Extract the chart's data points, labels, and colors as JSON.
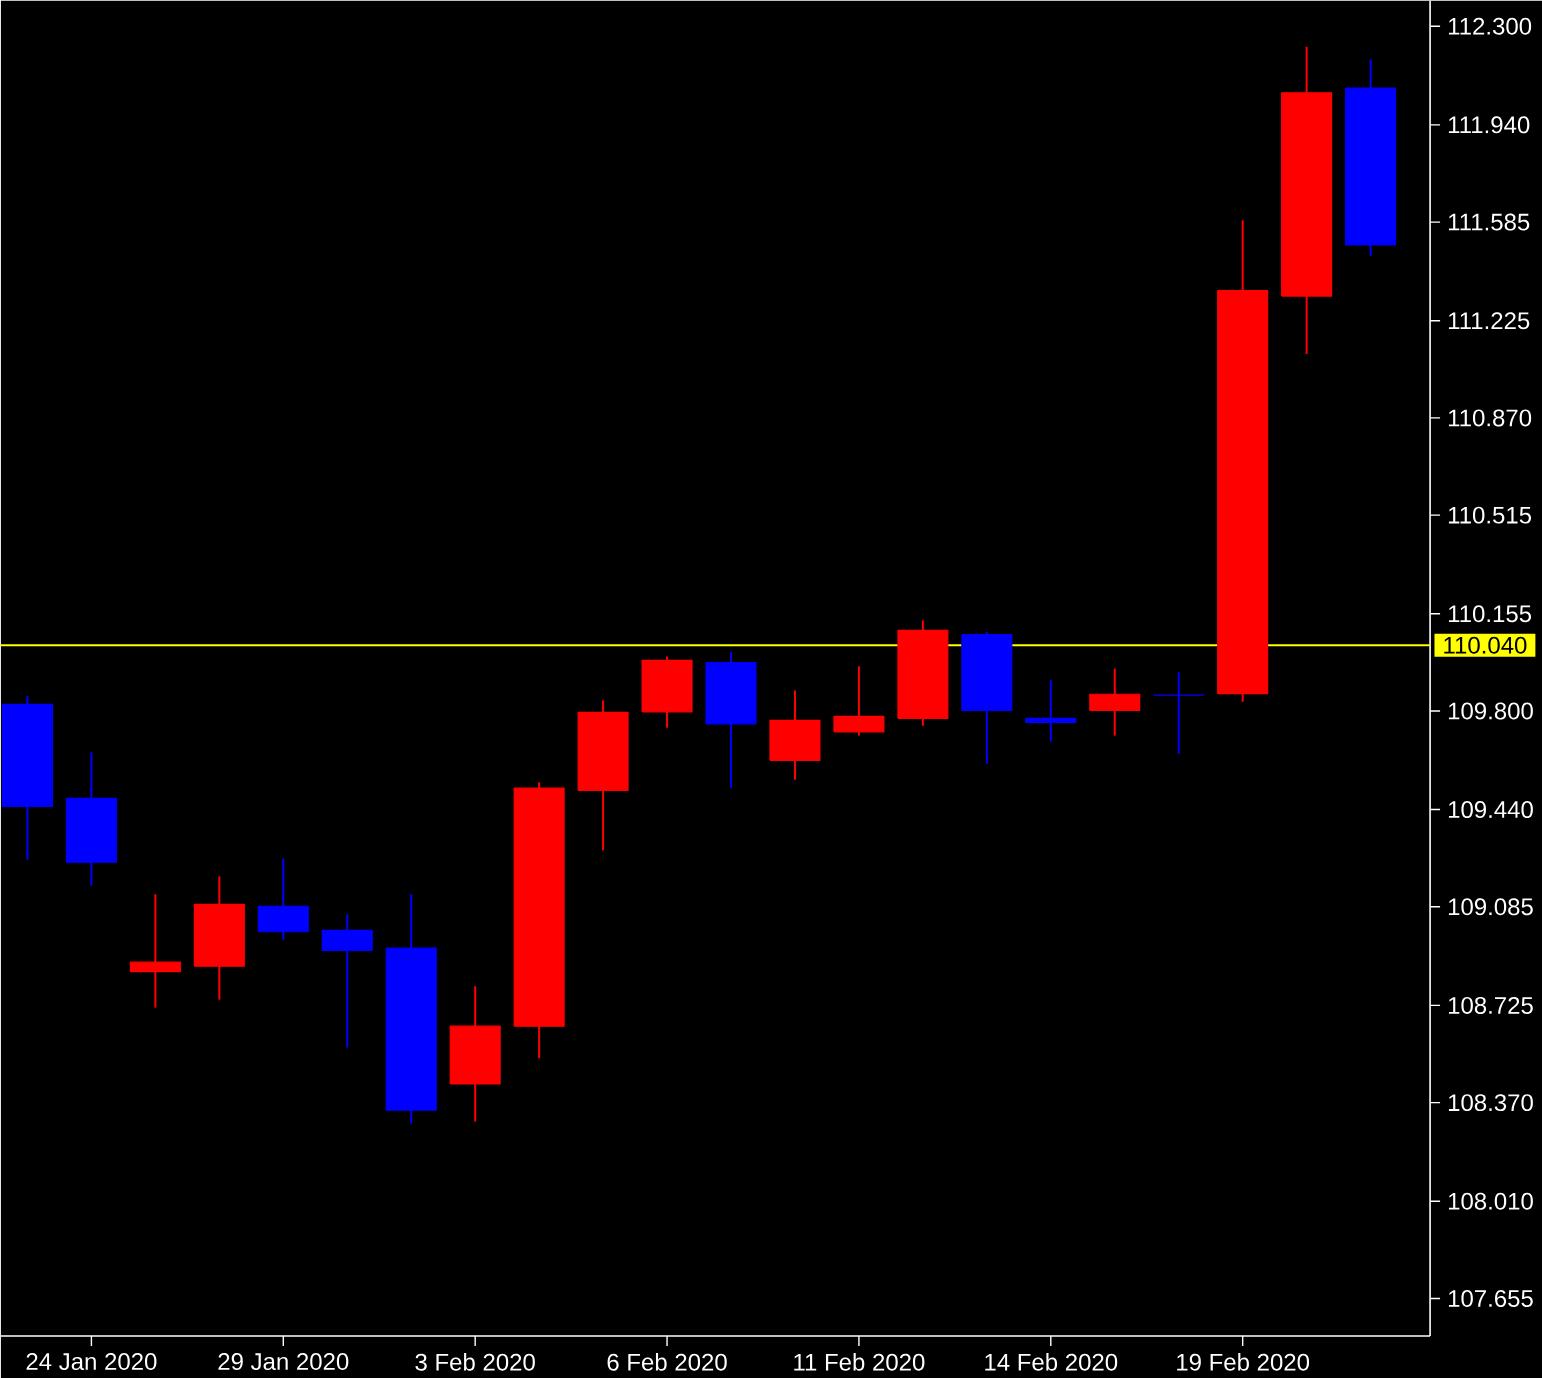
{
  "chart_data": {
    "type": "candlestick",
    "categories": [
      null,
      "24 Jan 2020",
      null,
      null,
      "29 Jan 2020",
      null,
      null,
      "3 Feb 2020",
      null,
      null,
      "6 Feb 2020",
      null,
      null,
      "11 Feb 2020",
      null,
      null,
      "14 Feb 2020",
      null,
      null,
      "19 Feb 2020",
      null,
      null
    ],
    "ohlc": [
      [
        109.824,
        109.855,
        109.257,
        109.452
      ],
      [
        109.481,
        109.649,
        109.162,
        109.248
      ],
      [
        108.848,
        109.131,
        108.717,
        108.883
      ],
      [
        108.868,
        109.196,
        108.746,
        109.094
      ],
      [
        109.087,
        109.262,
        108.965,
        108.994
      ],
      [
        108.999,
        109.058,
        108.571,
        108.926
      ],
      [
        108.934,
        109.131,
        108.294,
        108.343
      ],
      [
        108.438,
        108.795,
        108.301,
        108.649
      ],
      [
        108.649,
        109.54,
        108.532,
        109.518
      ],
      [
        109.51,
        109.839,
        109.291,
        109.795
      ],
      [
        109.797,
        109.999,
        109.739,
        109.985
      ],
      [
        109.977,
        110.014,
        109.52,
        109.753
      ],
      [
        109.62,
        109.875,
        109.549,
        109.766
      ],
      [
        109.724,
        109.963,
        109.71,
        109.78
      ],
      [
        109.773,
        110.131,
        109.746,
        110.094
      ],
      [
        110.079,
        110.089,
        109.607,
        109.802
      ],
      [
        109.773,
        109.912,
        109.688,
        109.758
      ],
      [
        109.802,
        109.955,
        109.71,
        109.861
      ],
      [
        109.858,
        109.941,
        109.644,
        109.858
      ],
      [
        109.863,
        111.592,
        109.834,
        111.335
      ],
      [
        111.315,
        112.225,
        111.103,
        112.057
      ],
      [
        112.074,
        112.179,
        111.461,
        111.502
      ]
    ],
    "colors": [
      "#0000ff",
      "#0000ff",
      "#ff0000",
      "#ff0000",
      "#0000ff",
      "#0000ff",
      "#0000ff",
      "#ff0000",
      "#ff0000",
      "#ff0000",
      "#ff0000",
      "#0000ff",
      "#ff0000",
      "#ff0000",
      "#ff0000",
      "#0000ff",
      "#0000ff",
      "#ff0000",
      "#0000ff",
      "#ff0000",
      "#ff0000",
      "#0000ff"
    ],
    "ylim": [
      107.518,
      112.393
    ],
    "yticks": [
      {
        "value": 112.3,
        "label": "112.300"
      },
      {
        "value": 111.94,
        "label": "111.940"
      },
      {
        "value": 111.585,
        "label": "111.585"
      },
      {
        "value": 111.225,
        "label": "111.225"
      },
      {
        "value": 110.87,
        "label": "110.870"
      },
      {
        "value": 110.515,
        "label": "110.515"
      },
      {
        "value": 110.155,
        "label": "110.155"
      },
      {
        "value": 109.8,
        "label": "109.800"
      },
      {
        "value": 109.44,
        "label": "109.440"
      },
      {
        "value": 109.085,
        "label": "109.085"
      },
      {
        "value": 108.725,
        "label": "108.725"
      },
      {
        "value": 108.37,
        "label": "108.370"
      },
      {
        "value": 108.01,
        "label": "108.010"
      },
      {
        "value": 107.655,
        "label": "107.655"
      }
    ],
    "ref_lines": [
      {
        "axis": "y",
        "value": 110.04,
        "label": "110.040",
        "color": "#ffff00"
      }
    ]
  }
}
